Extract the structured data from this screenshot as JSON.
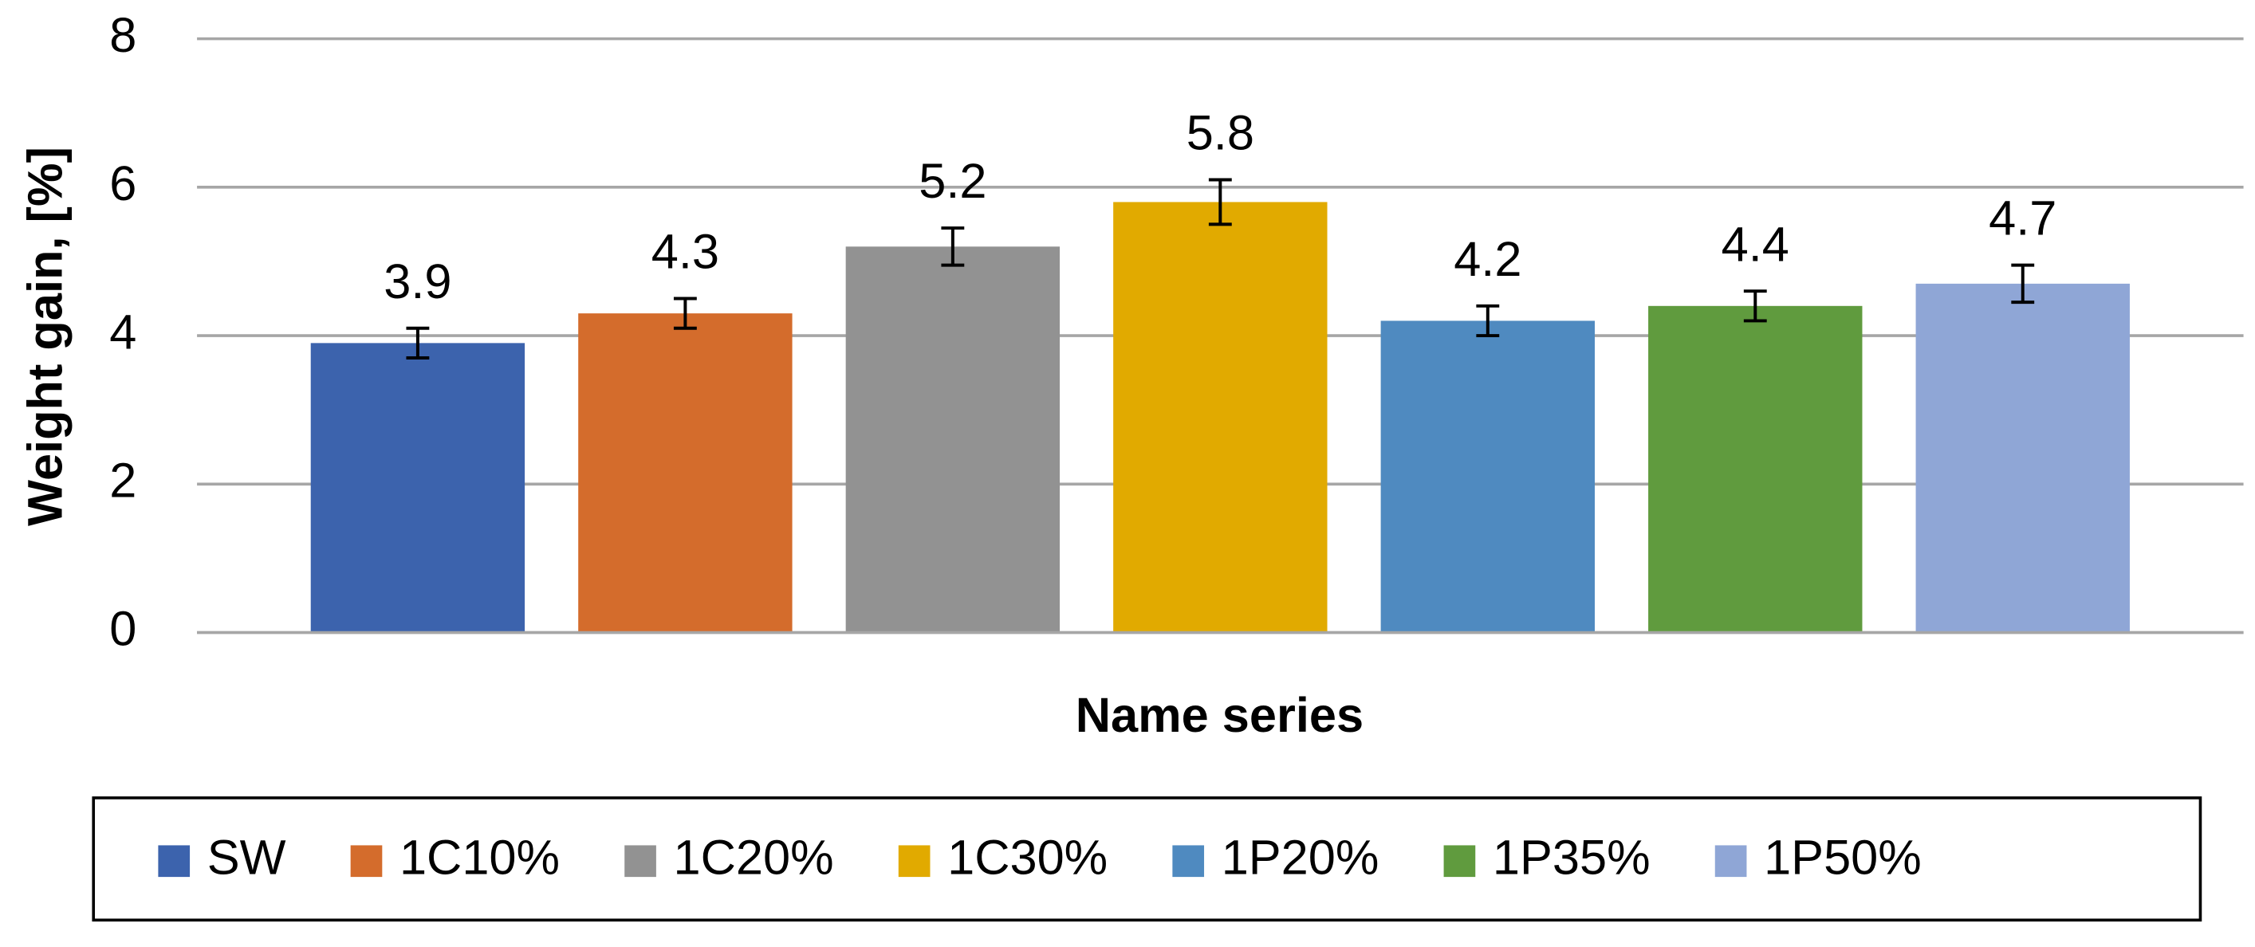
{
  "chart_data": {
    "type": "bar",
    "x_label": "Name series",
    "y_label": "Weight gain, [%]",
    "categories": [
      null
    ],
    "series": [
      {
        "name": "SW",
        "color": "#3c63ad",
        "values": [
          3.9
        ],
        "errors": [
          0.2
        ]
      },
      {
        "name": "1C10%",
        "color": "#d46c2c",
        "values": [
          4.3
        ],
        "errors": [
          0.2
        ]
      },
      {
        "name": "1C20%",
        "color": "#929292",
        "values": [
          5.2
        ],
        "errors": [
          0.25
        ]
      },
      {
        "name": "1C30%",
        "color": "#e1aa00",
        "values": [
          5.8
        ],
        "errors": [
          0.3
        ]
      },
      {
        "name": "1P20%",
        "color": "#4f8ac0",
        "values": [
          4.2
        ],
        "errors": [
          0.2
        ]
      },
      {
        "name": "1P35%",
        "color": "#609b3e",
        "values": [
          4.4
        ],
        "errors": [
          0.2
        ]
      },
      {
        "name": "1P50%",
        "color": "#8fa6d6",
        "values": [
          4.7
        ],
        "errors": [
          0.25
        ]
      }
    ],
    "ylim": [
      0,
      8
    ],
    "yticks": [
      0,
      2,
      4,
      6,
      8
    ],
    "grid": true,
    "legend": "bottom"
  }
}
